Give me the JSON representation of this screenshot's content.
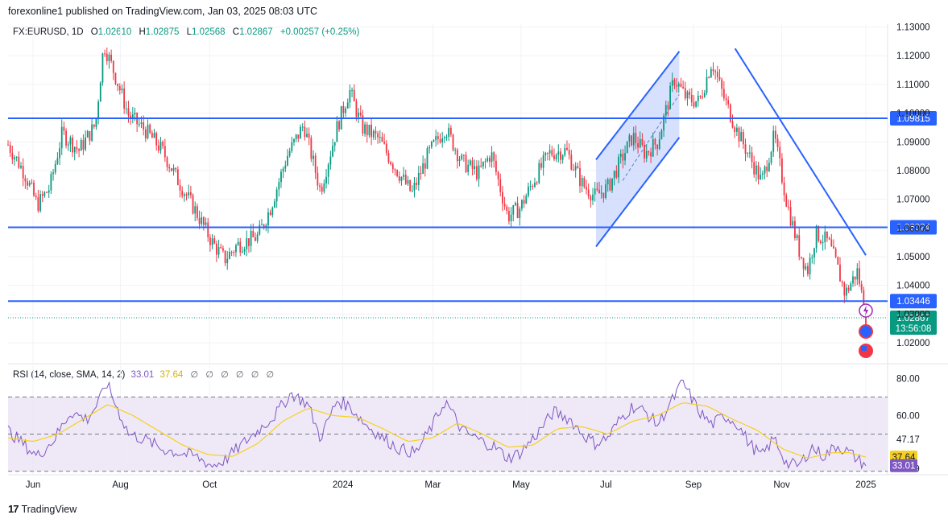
{
  "header": {
    "published": "forexonline1 published on TradingView.com, Jan 03, 2025 08:03 UTC"
  },
  "legend": {
    "symbol": "FX:EURUSD, 1D",
    "o_label": "O",
    "o": "1.02610",
    "h_label": "H",
    "h": "1.02875",
    "l_label": "L",
    "l": "1.02568",
    "c_label": "C",
    "c": "1.02867",
    "change": "+0.00257 (+0.25%)"
  },
  "rsi_legend": {
    "label": "RSI (14, close, SMA, 14, 2)",
    "rsi": "33.01",
    "sma": "37.64",
    "hidden": [
      "∅",
      "∅",
      "∅",
      "∅",
      "∅",
      "∅"
    ]
  },
  "footer": {
    "brand": "TradingView"
  },
  "colors": {
    "up": "#089981",
    "down": "#f23645",
    "line": "#2962ff",
    "channel_fill": "#c9d6fb",
    "rsi": "#7e57c2",
    "rsi_sma": "#f5d020",
    "rsi_band": "#ede7f6"
  },
  "chart_data": {
    "type": "candlestick",
    "symbol": "FX:EURUSD",
    "interval": "1D",
    "price_axis": [
      "1.13000",
      "1.12000",
      "1.11000",
      "1.10000",
      "1.09000",
      "1.08000",
      "1.07000",
      "1.06000",
      "1.05000",
      "1.04000",
      "1.03000",
      "1.02000"
    ],
    "ylim": [
      1.0127,
      1.131
    ],
    "time_axis": [
      {
        "label": "Jun",
        "t": 0.03
      },
      {
        "label": "Aug",
        "t": 0.135
      },
      {
        "label": "Oct",
        "t": 0.242
      },
      {
        "label": "2024",
        "t": 0.402
      },
      {
        "label": "Mar",
        "t": 0.51
      },
      {
        "label": "May",
        "t": 0.616
      },
      {
        "label": "Jul",
        "t": 0.718
      },
      {
        "label": "Sep",
        "t": 0.823
      },
      {
        "label": "Nov",
        "t": 0.929
      },
      {
        "label": "2025",
        "t": 1.03
      }
    ],
    "price_path": [
      [
        0.0,
        1.089
      ],
      [
        0.02,
        1.079
      ],
      [
        0.035,
        1.068
      ],
      [
        0.05,
        1.074
      ],
      [
        0.065,
        1.093
      ],
      [
        0.085,
        1.087
      ],
      [
        0.105,
        1.096
      ],
      [
        0.115,
        1.124
      ],
      [
        0.13,
        1.112
      ],
      [
        0.145,
        1.099
      ],
      [
        0.165,
        1.094
      ],
      [
        0.185,
        1.087
      ],
      [
        0.205,
        1.076
      ],
      [
        0.225,
        1.066
      ],
      [
        0.245,
        1.055
      ],
      [
        0.26,
        1.049
      ],
      [
        0.275,
        1.054
      ],
      [
        0.3,
        1.057
      ],
      [
        0.315,
        1.067
      ],
      [
        0.335,
        1.085
      ],
      [
        0.355,
        1.096
      ],
      [
        0.375,
        1.073
      ],
      [
        0.395,
        1.095
      ],
      [
        0.41,
        1.108
      ],
      [
        0.425,
        1.095
      ],
      [
        0.445,
        1.091
      ],
      [
        0.465,
        1.081
      ],
      [
        0.485,
        1.072
      ],
      [
        0.505,
        1.086
      ],
      [
        0.525,
        1.095
      ],
      [
        0.545,
        1.083
      ],
      [
        0.565,
        1.079
      ],
      [
        0.58,
        1.086
      ],
      [
        0.6,
        1.064
      ],
      [
        0.615,
        1.067
      ],
      [
        0.63,
        1.076
      ],
      [
        0.65,
        1.086
      ],
      [
        0.67,
        1.087
      ],
      [
        0.69,
        1.075
      ],
      [
        0.705,
        1.071
      ],
      [
        0.72,
        1.074
      ],
      [
        0.735,
        1.083
      ],
      [
        0.75,
        1.092
      ],
      [
        0.765,
        1.086
      ],
      [
        0.78,
        1.09
      ],
      [
        0.8,
        1.112
      ],
      [
        0.815,
        1.105
      ],
      [
        0.83,
        1.104
      ],
      [
        0.845,
        1.118
      ],
      [
        0.86,
        1.105
      ],
      [
        0.875,
        1.094
      ],
      [
        0.89,
        1.085
      ],
      [
        0.905,
        1.076
      ],
      [
        0.92,
        1.092
      ],
      [
        0.935,
        1.069
      ],
      [
        0.95,
        1.052
      ],
      [
        0.96,
        1.045
      ],
      [
        0.97,
        1.058
      ],
      [
        0.985,
        1.055
      ],
      [
        0.995,
        1.047
      ],
      [
        1.005,
        1.037
      ],
      [
        1.02,
        1.045
      ],
      [
        1.03,
        1.0287
      ]
    ],
    "horizontal_levels": [
      {
        "price": 1.0982,
        "label": "1.09815"
      },
      {
        "price": 1.0602,
        "label": "1.06024"
      },
      {
        "price": 1.0345,
        "label": "1.03446"
      }
    ],
    "trendlines": [
      {
        "name": "descending",
        "from": [
          0.873,
          1.1225
        ],
        "to": [
          1.03,
          1.0505
        ]
      }
    ],
    "channel": {
      "upper": [
        [
          0.706,
          1.0838
        ],
        [
          0.806,
          1.1215
        ]
      ],
      "lower": [
        [
          0.706,
          1.0535
        ],
        [
          0.806,
          1.0915
        ]
      ]
    },
    "current_price": {
      "price": 1.02867,
      "label": "1.02867",
      "countdown": "13:56:08"
    },
    "rsi": {
      "axis": [
        "80.00",
        "60.00",
        "47.17",
        "31.39"
      ],
      "ylim": [
        29.0,
        81.0
      ],
      "bands": [
        30,
        50,
        70
      ],
      "last_rsi": 33.01,
      "last_sma": 37.64,
      "rsi_path": [
        [
          0.0,
          52
        ],
        [
          0.02,
          44
        ],
        [
          0.035,
          38
        ],
        [
          0.055,
          47
        ],
        [
          0.075,
          62
        ],
        [
          0.095,
          58
        ],
        [
          0.11,
          68
        ],
        [
          0.118,
          78
        ],
        [
          0.13,
          65
        ],
        [
          0.145,
          50
        ],
        [
          0.165,
          47
        ],
        [
          0.185,
          42
        ],
        [
          0.205,
          40
        ],
        [
          0.225,
          38
        ],
        [
          0.245,
          33
        ],
        [
          0.26,
          36
        ],
        [
          0.28,
          44
        ],
        [
          0.3,
          52
        ],
        [
          0.32,
          60
        ],
        [
          0.34,
          72
        ],
        [
          0.36,
          66
        ],
        [
          0.375,
          48
        ],
        [
          0.395,
          68
        ],
        [
          0.41,
          65
        ],
        [
          0.43,
          55
        ],
        [
          0.45,
          48
        ],
        [
          0.47,
          42
        ],
        [
          0.49,
          40
        ],
        [
          0.51,
          55
        ],
        [
          0.525,
          68
        ],
        [
          0.545,
          52
        ],
        [
          0.565,
          47
        ],
        [
          0.585,
          43
        ],
        [
          0.6,
          37
        ],
        [
          0.615,
          40
        ],
        [
          0.635,
          50
        ],
        [
          0.655,
          62
        ],
        [
          0.675,
          58
        ],
        [
          0.69,
          50
        ],
        [
          0.705,
          45
        ],
        [
          0.72,
          48
        ],
        [
          0.735,
          58
        ],
        [
          0.75,
          65
        ],
        [
          0.765,
          62
        ],
        [
          0.78,
          55
        ],
        [
          0.8,
          70
        ],
        [
          0.81,
          78
        ],
        [
          0.83,
          62
        ],
        [
          0.845,
          55
        ],
        [
          0.86,
          60
        ],
        [
          0.875,
          56
        ],
        [
          0.89,
          45
        ],
        [
          0.905,
          38
        ],
        [
          0.92,
          48
        ],
        [
          0.935,
          34
        ],
        [
          0.95,
          33
        ],
        [
          0.965,
          43
        ],
        [
          0.98,
          38
        ],
        [
          0.995,
          44
        ],
        [
          1.01,
          40
        ],
        [
          1.03,
          33
        ]
      ],
      "sma_path": [
        [
          0.0,
          48
        ],
        [
          0.03,
          46
        ],
        [
          0.06,
          50
        ],
        [
          0.09,
          58
        ],
        [
          0.12,
          66
        ],
        [
          0.15,
          60
        ],
        [
          0.18,
          52
        ],
        [
          0.21,
          44
        ],
        [
          0.24,
          39
        ],
        [
          0.27,
          38
        ],
        [
          0.3,
          45
        ],
        [
          0.33,
          57
        ],
        [
          0.36,
          64
        ],
        [
          0.39,
          60
        ],
        [
          0.42,
          59
        ],
        [
          0.45,
          53
        ],
        [
          0.48,
          46
        ],
        [
          0.51,
          48
        ],
        [
          0.54,
          56
        ],
        [
          0.57,
          50
        ],
        [
          0.6,
          43
        ],
        [
          0.63,
          44
        ],
        [
          0.66,
          53
        ],
        [
          0.69,
          54
        ],
        [
          0.72,
          50
        ],
        [
          0.75,
          57
        ],
        [
          0.78,
          60
        ],
        [
          0.81,
          67
        ],
        [
          0.84,
          65
        ],
        [
          0.87,
          58
        ],
        [
          0.9,
          52
        ],
        [
          0.93,
          42
        ],
        [
          0.96,
          37
        ],
        [
          0.99,
          40
        ],
        [
          1.01,
          40
        ],
        [
          1.03,
          37.64
        ]
      ]
    }
  }
}
